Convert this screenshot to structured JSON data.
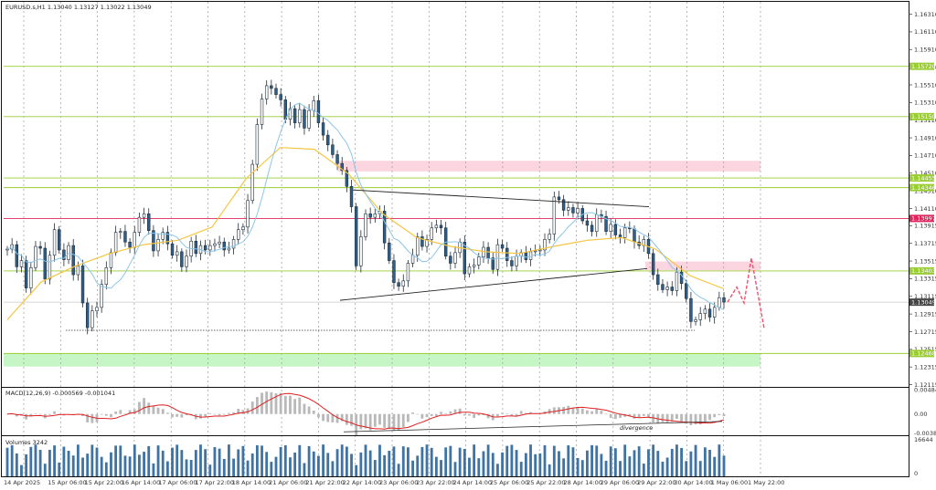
{
  "window": {
    "title": "EURUSD.s,H1  1.13040 1.13127 1.13022 1.13049"
  },
  "chart_data": {
    "type": "candlestick",
    "symbol": "EURUSD.s",
    "timeframe": "H1",
    "ohlc_header": {
      "open": 1.1304,
      "high": 1.13127,
      "low": 1.13022,
      "close": 1.13049
    },
    "price_axis": {
      "ylim": [
        1.121,
        1.1645
      ],
      "ticks": [
        "1.16310",
        "1.16110",
        "1.15910",
        "1.15710",
        "1.15510",
        "1.15310",
        "1.15110",
        "1.14910",
        "1.14710",
        "1.14510",
        "1.14310",
        "1.14110",
        "1.13915",
        "1.13715",
        "1.13515",
        "1.13315",
        "1.13115",
        "1.12915",
        "1.12715",
        "1.12515",
        "1.12315",
        "1.12115"
      ],
      "tick_values": [
        1.1631,
        1.1611,
        1.1591,
        1.1571,
        1.1551,
        1.1531,
        1.1511,
        1.1491,
        1.1471,
        1.1451,
        1.1431,
        1.1411,
        1.13915,
        1.13715,
        1.13515,
        1.13315,
        1.13115,
        1.12915,
        1.12715,
        1.12515,
        1.12315,
        1.12115
      ]
    },
    "time_axis": [
      "14 Apr 2025",
      "15 Apr 06:00",
      "15 Apr 22:00",
      "16 Apr 14:00",
      "17 Apr 06:00",
      "17 Apr 22:00",
      "18 Apr 14:00",
      "21 Apr 06:00",
      "21 Apr 22:00",
      "22 Apr 14:00",
      "23 Apr 06:00",
      "23 Apr 22:00",
      "24 Apr 14:00",
      "25 Apr 06:00",
      "25 Apr 22:00",
      "28 Apr 14:00",
      "29 Apr 06:00",
      "29 Apr 22:00",
      "30 Apr 14:00",
      "1 May 06:00",
      "1 May 22:00"
    ],
    "price_levels": [
      {
        "label": "1.15720",
        "value": 1.1572,
        "color": "#9acd32"
      },
      {
        "label": "1.15150",
        "value": 1.1515,
        "color": "#9acd32"
      },
      {
        "label": "1.14455",
        "value": 1.14455,
        "color": "#9acd32"
      },
      {
        "label": "1.14346",
        "value": 1.14346,
        "color": "#9acd32"
      },
      {
        "label": "1.13997",
        "value": 1.13997,
        "color": "#e0245e"
      },
      {
        "label": "1.13403",
        "value": 1.13403,
        "color": "#9acd32"
      },
      {
        "label": "1.13049",
        "value": 1.13049,
        "color": "#555555"
      },
      {
        "label": "1.12468",
        "value": 1.12468,
        "color": "#9acd32"
      }
    ],
    "zones": [
      {
        "kind": "resistance",
        "from": 1.1453,
        "to": 1.1465,
        "color": "#fbd5df"
      },
      {
        "kind": "resistance",
        "from": 1.1341,
        "to": 1.1351,
        "color": "#fbd5df"
      },
      {
        "kind": "support",
        "from": 1.1232,
        "to": 1.1247,
        "color": "#c6f5c6"
      }
    ],
    "candles_close": [
      1.1365,
      1.137,
      1.1345,
      1.1352,
      1.1321,
      1.1344,
      1.1368,
      1.1366,
      1.1331,
      1.1358,
      1.1387,
      1.1364,
      1.1353,
      1.1369,
      1.1336,
      1.1346,
      1.1304,
      1.1276,
      1.1295,
      1.1299,
      1.1325,
      1.1344,
      1.1361,
      1.1384,
      1.1385,
      1.1373,
      1.1367,
      1.1384,
      1.1401,
      1.1405,
      1.1386,
      1.1363,
      1.1376,
      1.1384,
      1.1371,
      1.1358,
      1.1362,
      1.1345,
      1.1357,
      1.1374,
      1.136,
      1.1369,
      1.1364,
      1.1369,
      1.1371,
      1.1373,
      1.1364,
      1.1366,
      1.1376,
      1.1387,
      1.139,
      1.142,
      1.1461,
      1.1506,
      1.1535,
      1.155,
      1.1547,
      1.154,
      1.1534,
      1.1512,
      1.1524,
      1.1508,
      1.1523,
      1.1502,
      1.1522,
      1.1533,
      1.1508,
      1.1494,
      1.1483,
      1.1472,
      1.1462,
      1.1454,
      1.1436,
      1.1413,
      1.1346,
      1.1379,
      1.1405,
      1.1401,
      1.1405,
      1.1408,
      1.1372,
      1.1352,
      1.1327,
      1.1323,
      1.1329,
      1.1349,
      1.1358,
      1.1379,
      1.1368,
      1.1376,
      1.1389,
      1.1392,
      1.1389,
      1.1357,
      1.1349,
      1.1361,
      1.1373,
      1.1337,
      1.1345,
      1.1347,
      1.1356,
      1.1367,
      1.1355,
      1.1342,
      1.137,
      1.1366,
      1.1352,
      1.1346,
      1.1357,
      1.1361,
      1.1353,
      1.1362,
      1.1363,
      1.1364,
      1.1376,
      1.1382,
      1.1424,
      1.1421,
      1.1409,
      1.1412,
      1.1406,
      1.1411,
      1.1397,
      1.1392,
      1.1385,
      1.1404,
      1.1402,
      1.1385,
      1.1393,
      1.1381,
      1.1378,
      1.1389,
      1.1388,
      1.1373,
      1.1369,
      1.1376,
      1.136,
      1.1336,
      1.1325,
      1.1319,
      1.1322,
      1.1318,
      1.1339,
      1.1326,
      1.1309,
      1.1283,
      1.1285,
      1.1292,
      1.1297,
      1.1288,
      1.1299,
      1.131,
      1.1305
    ],
    "ma_slow_anchor": [
      1.1285,
      1.1328,
      1.1346,
      1.136,
      1.137,
      1.1375,
      1.139,
      1.1445,
      1.148,
      1.1478,
      1.145,
      1.1405,
      1.1378,
      1.1368,
      1.1362,
      1.136,
      1.1368,
      1.1375,
      1.1378,
      1.1365,
      1.1335,
      1.132
    ],
    "annotations": [
      {
        "kind": "triangle-upper",
        "from": 1.1432,
        "to": 1.1413
      },
      {
        "kind": "triangle-lower",
        "from": 1.1307,
        "to": 1.1343
      },
      {
        "kind": "swing-low",
        "value": 1.1273
      },
      {
        "kind": "projection",
        "values": [
          1.1305,
          1.1322,
          1.1304,
          1.1355,
          1.1275
        ]
      }
    ],
    "macd": {
      "label": "MACD(12,26,9) -0.000569 -0.001041",
      "ticks": [
        "0.004845",
        "0.00",
        "-0.003899"
      ],
      "ylim": [
        -0.0041,
        0.0051
      ],
      "annotation": "divergence"
    },
    "volumes": {
      "label": "Volumes 3242",
      "ticks": [
        "16644",
        "0"
      ],
      "max": 16644
    }
  }
}
